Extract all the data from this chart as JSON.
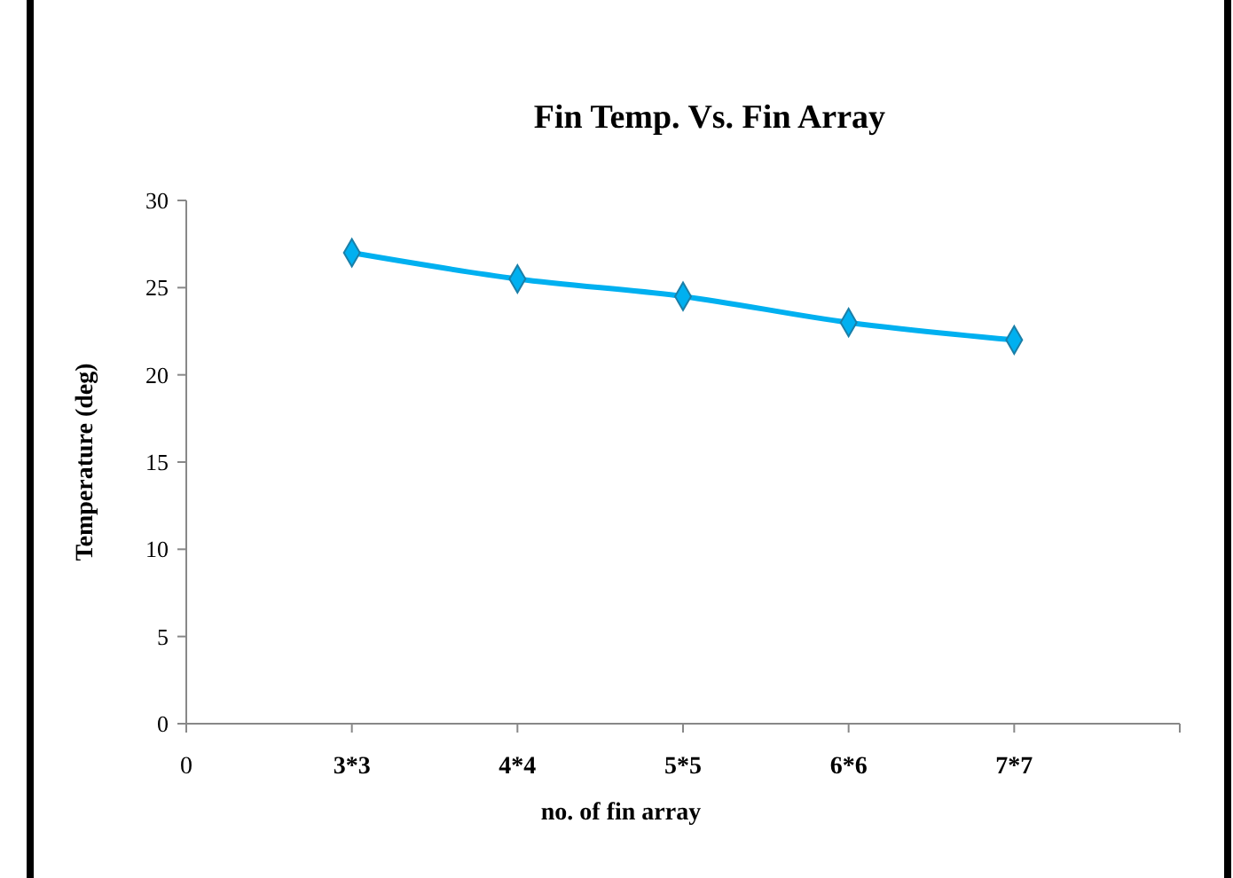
{
  "chart_data": {
    "type": "line",
    "title": "Fin Temp. Vs. Fin Array",
    "xlabel": "no. of fin array",
    "ylabel": "Temperature (deg)",
    "categories": [
      "0",
      "3*3",
      "4*4",
      "5*5",
      "6*6",
      "7*7",
      null
    ],
    "series": [
      {
        "color": "#00b0f0",
        "values": [
          null,
          27,
          25.5,
          24.5,
          23,
          22,
          null
        ]
      }
    ],
    "ylim": [
      0,
      30
    ],
    "yticks": [
      0,
      5,
      10,
      15,
      20,
      25,
      30
    ],
    "marker": "diamond",
    "line_style": "solid"
  }
}
